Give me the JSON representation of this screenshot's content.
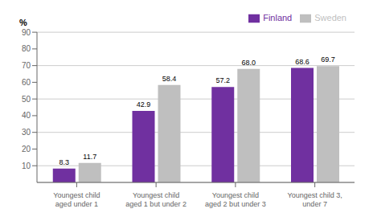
{
  "chart_data": {
    "type": "bar",
    "categories": [
      "Youngest child\naged under 1",
      "Youngest child\naged 1 but under 2",
      "Youngest child\naged 2 but under 3",
      "Youngest child 3,\nunder 7"
    ],
    "series": [
      {
        "name": "Finland",
        "color": "#7030A0",
        "values": [
          8.3,
          42.9,
          57.2,
          68.6
        ],
        "value_labels": [
          "8.3",
          "42.9",
          "57.2",
          "68.6"
        ]
      },
      {
        "name": "Sweden",
        "color": "#BFBFBF",
        "values": [
          11.7,
          58.4,
          68.0,
          69.7
        ],
        "value_labels": [
          "11.7",
          "58.4",
          "68.0",
          "69.7"
        ]
      }
    ],
    "ylabel": "%",
    "ylim": [
      0,
      90
    ],
    "yticks": [
      10,
      20,
      30,
      40,
      50,
      60,
      70,
      80,
      90
    ],
    "grid": true,
    "legend": "upper right",
    "data_labels": true
  }
}
